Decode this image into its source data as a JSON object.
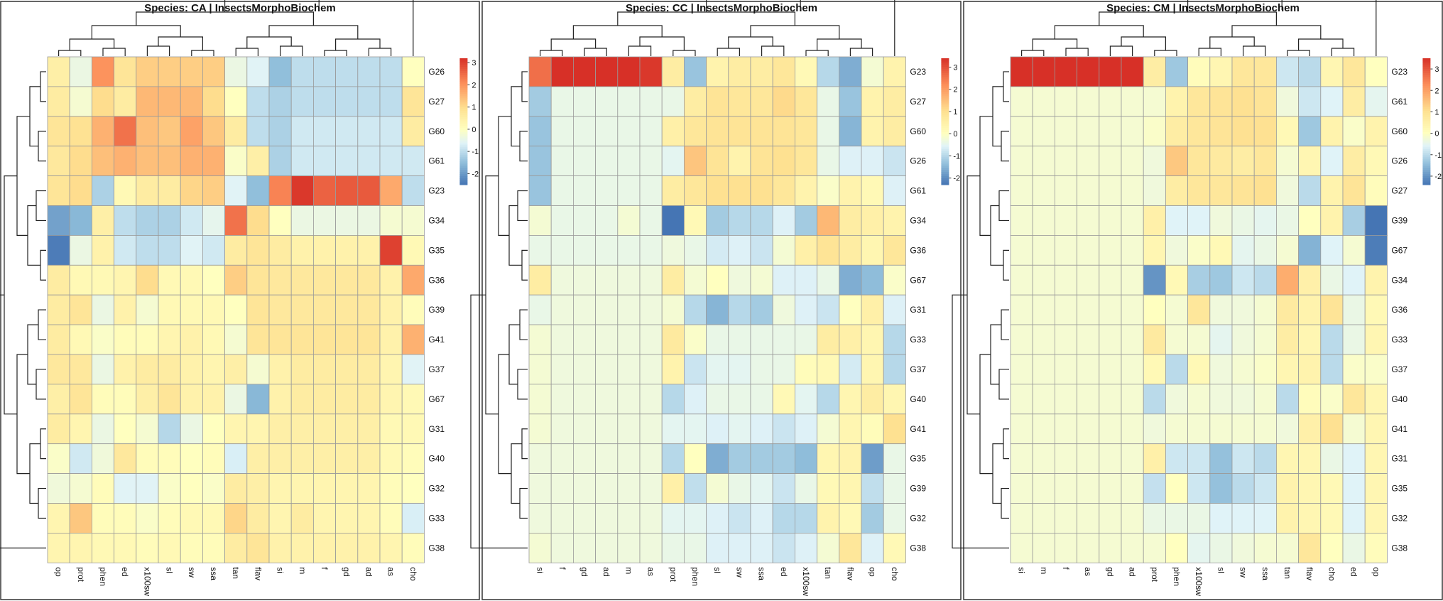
{
  "chart_data": [
    {
      "type": "heatmap",
      "title": "Species: CA | InsectsMorphoBiochem",
      "columns": [
        "op",
        "prot",
        "phen",
        "ed",
        "x100sw",
        "sl",
        "sw",
        "ssa",
        "tan",
        "flav",
        "si",
        "m",
        "f",
        "gd",
        "ad",
        "as",
        "cho"
      ],
      "rows": [
        "G26",
        "G27",
        "G60",
        "G61",
        "G23",
        "G34",
        "G35",
        "G36",
        "G39",
        "G41",
        "G37",
        "G67",
        "G31",
        "G40",
        "G32",
        "G33",
        "G38"
      ],
      "values": [
        [
          0.5,
          -0.4,
          2.0,
          0.8,
          1.2,
          1.2,
          1.2,
          1.2,
          -0.4,
          -0.6,
          -1.5,
          -1.0,
          -1.0,
          -1.0,
          -1.0,
          -1.0,
          0.0
        ],
        [
          0.6,
          -0.2,
          1.0,
          0.6,
          1.5,
          1.5,
          1.5,
          1.0,
          0.0,
          -1.0,
          -1.2,
          -1.0,
          -1.0,
          -1.0,
          -1.0,
          -1.0,
          0.8
        ],
        [
          0.8,
          0.9,
          1.6,
          2.4,
          1.4,
          1.3,
          1.8,
          1.3,
          0.6,
          -1.0,
          -1.2,
          -0.8,
          -0.8,
          -0.8,
          -0.8,
          -0.8,
          0.6
        ],
        [
          0.7,
          1.0,
          1.4,
          1.6,
          1.4,
          1.4,
          1.6,
          1.6,
          -0.1,
          0.5,
          -1.2,
          -0.8,
          -0.8,
          -0.8,
          -0.8,
          -0.8,
          -0.8
        ],
        [
          0.8,
          1.0,
          -1.2,
          0.2,
          0.6,
          0.6,
          1.1,
          1.2,
          -0.6,
          -1.5,
          2.2,
          3.1,
          2.6,
          2.7,
          2.7,
          1.7,
          -1.0
        ],
        [
          -1.9,
          -1.6,
          0.5,
          -1.0,
          -1.2,
          -1.2,
          -0.8,
          -0.5,
          2.4,
          1.0,
          0.0,
          -0.4,
          -0.4,
          -0.4,
          -0.4,
          -0.2,
          -0.2
        ],
        [
          -2.4,
          -0.4,
          0.4,
          -0.8,
          -1.0,
          -1.0,
          -0.6,
          -0.8,
          0.6,
          0.8,
          0.6,
          0.4,
          0.4,
          0.4,
          0.4,
          3.0,
          0.2
        ],
        [
          0.6,
          0.2,
          0.2,
          0.3,
          1.0,
          0.2,
          0.2,
          0.0,
          1.2,
          0.8,
          0.7,
          0.7,
          0.7,
          0.7,
          0.7,
          0.4,
          1.7
        ],
        [
          0.6,
          0.8,
          -0.4,
          0.4,
          -0.2,
          0.2,
          0.2,
          0.2,
          0.0,
          0.8,
          0.7,
          0.7,
          0.7,
          0.7,
          0.7,
          0.4,
          0.1
        ],
        [
          0.6,
          0.2,
          -0.1,
          0.1,
          0.1,
          0.3,
          0.4,
          0.2,
          -0.2,
          0.8,
          0.8,
          0.8,
          0.8,
          0.8,
          0.8,
          0.4,
          1.6
        ],
        [
          0.7,
          0.7,
          -0.4,
          0.4,
          0.6,
          0.6,
          0.4,
          0.3,
          0.5,
          -0.2,
          0.4,
          0.6,
          0.6,
          0.6,
          0.6,
          0.3,
          -0.6
        ],
        [
          0.5,
          0.8,
          0.1,
          0.1,
          0.5,
          0.8,
          0.4,
          0.4,
          -0.4,
          -1.6,
          0.4,
          0.6,
          0.6,
          0.6,
          0.6,
          0.3,
          0.2
        ],
        [
          0.6,
          0.3,
          -0.4,
          0.0,
          -0.2,
          -1.1,
          -0.4,
          0.0,
          0.3,
          0.3,
          0.5,
          0.5,
          0.5,
          0.5,
          0.5,
          0.2,
          0.2
        ],
        [
          -0.1,
          -0.8,
          -0.3,
          0.7,
          0.1,
          0.1,
          0.0,
          0.1,
          -0.7,
          0.5,
          0.5,
          0.5,
          0.5,
          0.5,
          0.5,
          0.2,
          0.1
        ],
        [
          -0.3,
          -0.2,
          0.1,
          -0.6,
          -0.6,
          -0.1,
          0.0,
          -0.1,
          0.6,
          0.5,
          0.3,
          0.3,
          0.3,
          0.3,
          0.3,
          0.1,
          0.0
        ],
        [
          0.3,
          1.3,
          0.1,
          0.1,
          -0.1,
          0.1,
          0.2,
          0.2,
          1.1,
          0.6,
          0.3,
          0.6,
          0.3,
          0.3,
          0.3,
          0.1,
          -0.7
        ],
        [
          0.3,
          0.3,
          0.2,
          0.2,
          0.1,
          0.2,
          0.1,
          0.1,
          0.6,
          0.8,
          0.4,
          0.4,
          0.4,
          0.4,
          0.4,
          0.3,
          0.1
        ]
      ],
      "legend": {
        "ticks": [
          3,
          2,
          1,
          0,
          -1,
          -2
        ],
        "vmin": -2.5,
        "vmax": 3.2
      }
    },
    {
      "type": "heatmap",
      "title": "Species: CC | InsectsMorphoBiochem",
      "columns": [
        "si",
        "f",
        "gd",
        "ad",
        "m",
        "as",
        "prot",
        "phen",
        "sl",
        "sw",
        "ssa",
        "ed",
        "x100sw",
        "tan",
        "flav",
        "op",
        "cho"
      ],
      "rows": [
        "G23",
        "G27",
        "G60",
        "G26",
        "G61",
        "G34",
        "G36",
        "G67",
        "G31",
        "G33",
        "G37",
        "G40",
        "G41",
        "G35",
        "G39",
        "G32",
        "G38"
      ],
      "values": [
        [
          2.6,
          3.4,
          3.4,
          3.4,
          3.4,
          3.3,
          0.6,
          -1.3,
          0.4,
          0.6,
          0.6,
          0.8,
          0.2,
          -1.0,
          -1.6,
          -0.2,
          0.4
        ],
        [
          -1.2,
          -0.4,
          -0.4,
          -0.4,
          -0.4,
          -0.4,
          -0.4,
          0.6,
          0.9,
          0.8,
          0.8,
          1.1,
          0.8,
          -0.4,
          -1.3,
          0.4,
          0.6
        ],
        [
          -1.3,
          -0.4,
          -0.4,
          -0.4,
          -0.4,
          -0.4,
          0.5,
          0.8,
          0.9,
          0.9,
          0.9,
          0.9,
          0.8,
          -0.4,
          -1.5,
          0.4,
          0.6
        ],
        [
          -1.3,
          -0.4,
          -0.4,
          -0.4,
          -0.4,
          -0.4,
          -0.5,
          1.4,
          0.9,
          0.4,
          0.9,
          1.0,
          0.8,
          -0.4,
          -0.6,
          -0.6,
          -0.8
        ],
        [
          -1.3,
          -0.4,
          -0.4,
          -0.4,
          -0.4,
          -0.4,
          0.6,
          0.8,
          1.0,
          1.0,
          1.0,
          0.8,
          0.4,
          -0.1,
          0.4,
          0.2,
          -0.6
        ],
        [
          -0.2,
          -0.4,
          -0.4,
          -0.4,
          -0.2,
          -0.4,
          -2.3,
          0.2,
          -1.2,
          -1.0,
          -1.0,
          -0.6,
          -1.2,
          1.6,
          0.6,
          0.5,
          0.4
        ],
        [
          -0.4,
          -0.4,
          -0.4,
          -0.4,
          -0.4,
          -0.4,
          -0.3,
          -0.4,
          -0.7,
          -0.6,
          -0.8,
          -0.2,
          0.5,
          0.9,
          0.6,
          0.3,
          0.8
        ],
        [
          0.6,
          -0.3,
          -0.3,
          -0.3,
          -0.3,
          -0.3,
          0.6,
          -0.2,
          0.0,
          -0.3,
          -0.2,
          -0.6,
          -0.6,
          -0.4,
          -1.6,
          -1.4,
          -0.1
        ],
        [
          -0.4,
          -0.3,
          -0.3,
          -0.3,
          -0.3,
          -0.3,
          -0.2,
          -1.0,
          -1.5,
          -1.0,
          -1.2,
          -0.3,
          -0.6,
          -0.8,
          0.0,
          0.5,
          -0.6
        ],
        [
          -0.2,
          -0.3,
          -0.3,
          -0.3,
          -0.3,
          -0.3,
          0.7,
          -0.1,
          -0.4,
          -0.4,
          -0.4,
          -0.4,
          -0.4,
          0.6,
          0.5,
          0.3,
          -1.0
        ],
        [
          -0.2,
          -0.3,
          -0.3,
          -0.3,
          -0.3,
          -0.3,
          0.4,
          -0.8,
          -0.5,
          -0.5,
          -0.4,
          -0.4,
          0.1,
          0.2,
          -0.7,
          0.3,
          -1.0
        ],
        [
          -0.2,
          -0.3,
          -0.3,
          -0.3,
          -0.3,
          -0.3,
          -1.0,
          -0.6,
          -0.4,
          -0.4,
          -0.4,
          0.2,
          -0.5,
          -1.0,
          0.3,
          0.6,
          0.3
        ],
        [
          -0.2,
          -0.3,
          -0.3,
          -0.3,
          -0.3,
          -0.3,
          -0.5,
          -0.5,
          -0.6,
          -0.5,
          -0.6,
          -0.8,
          -0.6,
          -0.2,
          0.3,
          0.1,
          1.0
        ],
        [
          -0.3,
          -0.3,
          -0.3,
          -0.3,
          -0.3,
          -0.3,
          -1.0,
          0.0,
          -1.6,
          -1.2,
          -1.2,
          -1.2,
          -1.4,
          0.3,
          0.4,
          -1.8,
          -0.4
        ],
        [
          -0.3,
          -0.3,
          -0.3,
          -0.3,
          -0.3,
          -0.3,
          0.5,
          -0.9,
          -0.2,
          -0.4,
          -0.5,
          -0.8,
          -0.4,
          0.2,
          0.3,
          -0.9,
          -0.4
        ],
        [
          -0.3,
          -0.3,
          -0.3,
          -0.3,
          -0.3,
          -0.3,
          -0.5,
          -0.5,
          -0.6,
          -0.8,
          -0.6,
          -1.0,
          -1.0,
          0.4,
          0.2,
          -1.2,
          -0.4
        ],
        [
          -0.2,
          -0.3,
          -0.3,
          -0.3,
          -0.3,
          -0.3,
          -0.4,
          -0.4,
          -0.6,
          -0.6,
          -0.6,
          -0.8,
          -0.6,
          -0.2,
          0.8,
          -0.6,
          0.2
        ]
      ],
      "legend": {
        "ticks": [
          3,
          2,
          1,
          0,
          -1,
          -2
        ],
        "vmin": -2.3,
        "vmax": 3.4
      }
    },
    {
      "type": "heatmap",
      "title": "Species: CM | InsectsMorphoBiochem",
      "columns": [
        "si",
        "m",
        "f",
        "as",
        "gd",
        "ad",
        "prot",
        "phen",
        "x100sw",
        "sl",
        "sw",
        "ssa",
        "tan",
        "flav",
        "cho",
        "ed",
        "op"
      ],
      "rows": [
        "G23",
        "G61",
        "G60",
        "G26",
        "G27",
        "G39",
        "G67",
        "G34",
        "G36",
        "G33",
        "G37",
        "G40",
        "G41",
        "G31",
        "G35",
        "G32",
        "G38"
      ],
      "values": [
        [
          3.5,
          3.5,
          3.5,
          3.5,
          3.5,
          3.5,
          0.6,
          -1.3,
          0.1,
          0.3,
          0.8,
          0.8,
          -0.8,
          -1.0,
          0.3,
          0.8,
          0.0
        ],
        [
          -0.2,
          -0.2,
          -0.2,
          -0.2,
          -0.2,
          -0.2,
          -0.2,
          0.4,
          0.8,
          0.9,
          1.0,
          0.9,
          -0.3,
          -0.8,
          -0.6,
          0.6,
          -0.5
        ],
        [
          -0.2,
          -0.2,
          -0.2,
          -0.2,
          -0.2,
          -0.2,
          -0.1,
          0.6,
          0.8,
          0.9,
          1.0,
          1.0,
          0.2,
          -1.3,
          0.4,
          -0.1,
          0.4
        ],
        [
          -0.2,
          -0.2,
          -0.2,
          -0.2,
          -0.2,
          -0.2,
          -0.3,
          1.4,
          0.8,
          0.7,
          0.6,
          0.8,
          -0.2,
          0.3,
          -0.6,
          0.6,
          0.2
        ],
        [
          -0.2,
          -0.2,
          -0.2,
          -0.2,
          -0.2,
          -0.2,
          -0.3,
          0.6,
          0.8,
          0.8,
          0.9,
          1.0,
          -0.3,
          -1.0,
          0.4,
          0.9,
          0.1
        ],
        [
          -0.2,
          -0.2,
          -0.2,
          -0.2,
          -0.2,
          -0.2,
          0.5,
          -0.6,
          -0.6,
          -0.3,
          -0.4,
          -0.5,
          -0.4,
          0.0,
          0.4,
          -1.2,
          -2.4
        ],
        [
          -0.2,
          -0.2,
          -0.2,
          -0.2,
          -0.2,
          -0.2,
          0.3,
          -0.3,
          -0.1,
          0.2,
          -0.5,
          -0.4,
          -0.2,
          -1.6,
          -0.6,
          -0.2,
          -2.3
        ],
        [
          -0.2,
          -0.2,
          -0.2,
          -0.2,
          -0.2,
          -0.2,
          -2.0,
          0.2,
          -1.2,
          -1.3,
          -0.8,
          -1.0,
          1.8,
          0.5,
          -0.4,
          -0.6,
          0.4
        ],
        [
          -0.2,
          -0.2,
          -0.2,
          -0.2,
          -0.2,
          -0.2,
          0.0,
          -0.2,
          0.8,
          -0.3,
          -0.3,
          -0.2,
          0.7,
          0.4,
          0.9,
          -0.4,
          0.2
        ],
        [
          -0.2,
          -0.2,
          -0.2,
          -0.2,
          -0.2,
          -0.2,
          0.7,
          -0.2,
          -0.2,
          -0.5,
          -0.3,
          -0.2,
          0.6,
          0.3,
          -1.0,
          -0.4,
          0.3
        ],
        [
          -0.2,
          -0.2,
          -0.2,
          -0.2,
          -0.2,
          -0.2,
          0.2,
          -1.0,
          0.2,
          -0.3,
          -0.2,
          -0.1,
          0.3,
          0.4,
          -1.0,
          -0.1,
          -0.1
        ],
        [
          -0.2,
          -0.2,
          -0.2,
          -0.2,
          -0.2,
          -0.2,
          -1.0,
          -0.3,
          -0.2,
          -0.3,
          -0.3,
          -0.2,
          -1.0,
          0.1,
          -0.1,
          0.8,
          0.3
        ],
        [
          -0.2,
          -0.2,
          -0.2,
          -0.2,
          -0.2,
          -0.2,
          -0.3,
          -0.2,
          -0.2,
          -0.2,
          -0.2,
          -0.2,
          -0.3,
          0.5,
          1.0,
          -0.2,
          0.3
        ],
        [
          -0.2,
          -0.2,
          -0.2,
          -0.2,
          -0.2,
          -0.2,
          0.5,
          -0.8,
          -0.8,
          -1.4,
          -0.8,
          -1.0,
          0.3,
          0.3,
          -0.4,
          -0.6,
          0.3
        ],
        [
          -0.2,
          -0.2,
          -0.2,
          -0.2,
          -0.2,
          -0.2,
          -0.9,
          0.0,
          -0.8,
          -1.4,
          -1.0,
          -0.8,
          0.4,
          0.3,
          0.2,
          -0.6,
          0.3
        ],
        [
          -0.2,
          -0.2,
          -0.2,
          -0.2,
          -0.2,
          -0.2,
          -0.4,
          -0.4,
          -0.4,
          -0.6,
          -0.6,
          -0.6,
          0.4,
          0.3,
          0.2,
          -0.6,
          0.3
        ],
        [
          -0.2,
          -0.2,
          -0.2,
          -0.2,
          -0.2,
          -0.2,
          -0.2,
          0.0,
          -0.5,
          -0.4,
          -0.3,
          -0.2,
          -0.2,
          0.8,
          0.0,
          -0.4,
          0.1
        ]
      ],
      "legend": {
        "ticks": [
          3,
          2,
          1,
          0,
          -1,
          -2
        ],
        "vmin": -2.4,
        "vmax": 3.5
      }
    }
  ]
}
